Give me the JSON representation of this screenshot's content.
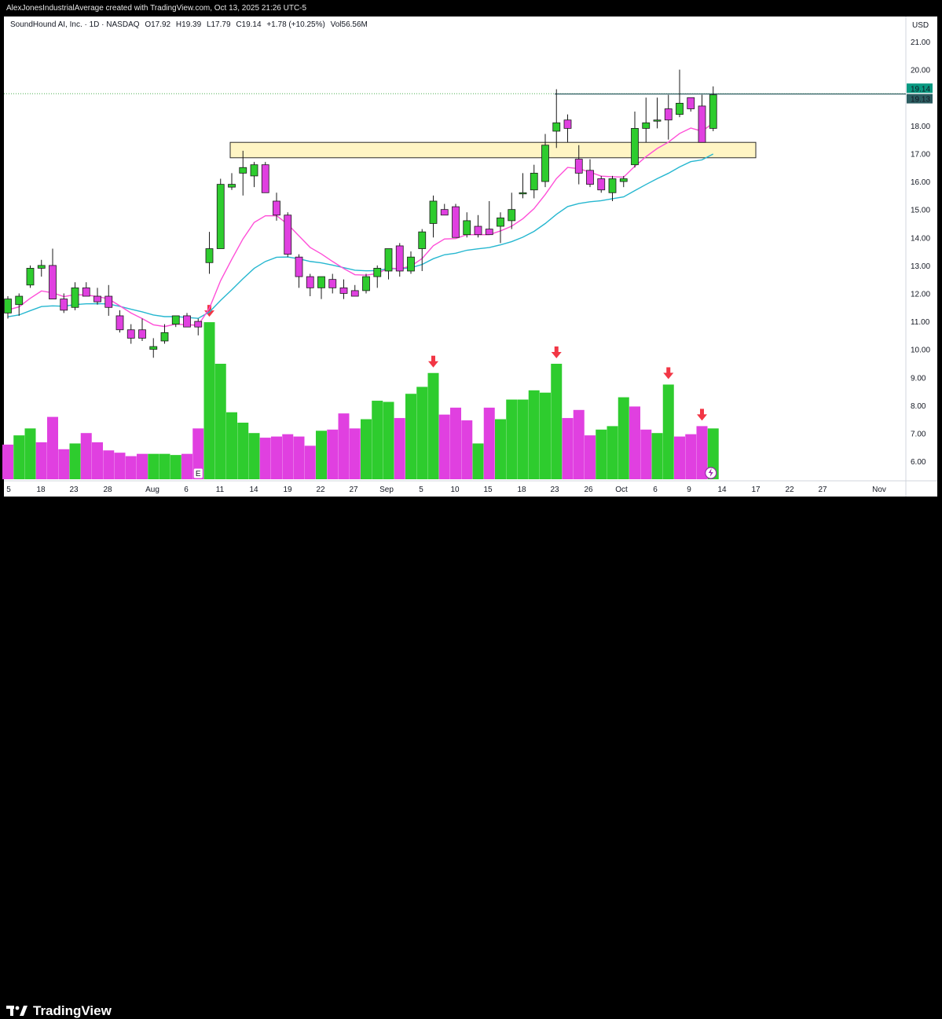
{
  "header": {
    "credit": "AlexJonesIndustrialAverage created with TradingView.com, Oct 13, 2025 21:26 UTC-5",
    "symbol": "SoundHound AI, Inc. · 1D · NASDAQ",
    "open": "O17.92",
    "high": "H19.39",
    "low": "L17.79",
    "close": "C19.14",
    "change": "+1.78 (+10.25%)",
    "volume": "Vol56.56M"
  },
  "footer": {
    "brand": "TradingView"
  },
  "colors": {
    "up": "#2ecc2e",
    "down": "#e040e0",
    "ema_fast": "#ff4fd8",
    "ema_slow": "#26b7d0",
    "zone_fill": "#fff5c4",
    "arrow": "#f23645",
    "last_price": "#26a69a"
  },
  "chart_data": {
    "type": "candlestick",
    "currency": "USD",
    "price_axis": {
      "min": 5.3,
      "max": 21.9,
      "ticks": [
        "21.00",
        "20.00",
        "19.00",
        "18.00",
        "17.00",
        "16.00",
        "15.00",
        "14.00",
        "13.00",
        "12.00",
        "11.00",
        "10.00",
        "9.00",
        "8.00",
        "7.00",
        "6.00"
      ]
    },
    "x_labels": [
      "5",
      "18",
      "23",
      "28",
      "Aug",
      "6",
      "11",
      "14",
      "19",
      "22",
      "27",
      "Sep",
      "5",
      "10",
      "15",
      "18",
      "23",
      "26",
      "Oct",
      "6",
      "9",
      "14",
      "17",
      "22",
      "27",
      "Nov"
    ],
    "last_price_labels": [
      "19.14",
      "19.13"
    ],
    "earnings_marker": "E",
    "resistance_zone": {
      "top": 17.4,
      "bottom": 16.85
    },
    "resistance_line": 19.13,
    "candles": [
      {
        "o": 11.3,
        "h": 11.9,
        "l": 11.1,
        "c": 11.8
      },
      {
        "o": 11.6,
        "h": 12.0,
        "l": 11.2,
        "c": 11.9
      },
      {
        "o": 12.3,
        "h": 13.0,
        "l": 12.2,
        "c": 12.9
      },
      {
        "o": 12.9,
        "h": 13.2,
        "l": 12.6,
        "c": 13.0
      },
      {
        "o": 13.0,
        "h": 13.6,
        "l": 11.8,
        "c": 11.8
      },
      {
        "o": 11.8,
        "h": 12.0,
        "l": 11.3,
        "c": 11.4
      },
      {
        "o": 11.5,
        "h": 12.4,
        "l": 11.4,
        "c": 12.2
      },
      {
        "o": 12.2,
        "h": 12.4,
        "l": 11.9,
        "c": 11.9
      },
      {
        "o": 11.9,
        "h": 12.2,
        "l": 11.6,
        "c": 11.7
      },
      {
        "o": 11.9,
        "h": 12.3,
        "l": 11.2,
        "c": 11.5
      },
      {
        "o": 11.2,
        "h": 11.4,
        "l": 10.6,
        "c": 10.7
      },
      {
        "o": 10.7,
        "h": 10.9,
        "l": 10.2,
        "c": 10.4
      },
      {
        "o": 10.7,
        "h": 11.1,
        "l": 10.3,
        "c": 10.4
      },
      {
        "o": 10.0,
        "h": 10.4,
        "l": 9.7,
        "c": 10.1
      },
      {
        "o": 10.3,
        "h": 10.9,
        "l": 10.2,
        "c": 10.6
      },
      {
        "o": 10.9,
        "h": 11.2,
        "l": 10.8,
        "c": 11.2
      },
      {
        "o": 11.2,
        "h": 11.3,
        "l": 10.8,
        "c": 10.8
      },
      {
        "o": 11.0,
        "h": 11.1,
        "l": 10.5,
        "c": 10.8
      },
      {
        "o": 13.1,
        "h": 14.2,
        "l": 12.7,
        "c": 13.6
      },
      {
        "o": 13.6,
        "h": 16.1,
        "l": 13.6,
        "c": 15.9
      },
      {
        "o": 15.8,
        "h": 16.3,
        "l": 15.7,
        "c": 15.9
      },
      {
        "o": 16.3,
        "h": 17.1,
        "l": 15.5,
        "c": 16.5
      },
      {
        "o": 16.2,
        "h": 16.7,
        "l": 15.8,
        "c": 16.6
      },
      {
        "o": 16.6,
        "h": 16.7,
        "l": 15.6,
        "c": 15.6
      },
      {
        "o": 15.3,
        "h": 15.6,
        "l": 14.6,
        "c": 14.8
      },
      {
        "o": 14.8,
        "h": 14.9,
        "l": 13.3,
        "c": 13.4
      },
      {
        "o": 13.3,
        "h": 13.4,
        "l": 12.2,
        "c": 12.6
      },
      {
        "o": 12.6,
        "h": 12.7,
        "l": 11.9,
        "c": 12.2
      },
      {
        "o": 12.2,
        "h": 12.6,
        "l": 11.8,
        "c": 12.6
      },
      {
        "o": 12.5,
        "h": 12.7,
        "l": 12.0,
        "c": 12.2
      },
      {
        "o": 12.2,
        "h": 12.5,
        "l": 11.8,
        "c": 12.0
      },
      {
        "o": 12.1,
        "h": 12.3,
        "l": 11.9,
        "c": 11.9
      },
      {
        "o": 12.1,
        "h": 12.7,
        "l": 12.0,
        "c": 12.6
      },
      {
        "o": 12.6,
        "h": 13.0,
        "l": 12.2,
        "c": 12.9
      },
      {
        "o": 12.8,
        "h": 13.6,
        "l": 12.5,
        "c": 13.6
      },
      {
        "o": 13.7,
        "h": 13.8,
        "l": 12.6,
        "c": 12.8
      },
      {
        "o": 12.8,
        "h": 13.5,
        "l": 12.7,
        "c": 13.3
      },
      {
        "o": 13.6,
        "h": 14.3,
        "l": 12.8,
        "c": 14.2
      },
      {
        "o": 14.5,
        "h": 15.5,
        "l": 14.0,
        "c": 15.3
      },
      {
        "o": 15.0,
        "h": 15.2,
        "l": 14.8,
        "c": 14.8
      },
      {
        "o": 15.1,
        "h": 15.2,
        "l": 14.0,
        "c": 14.0
      },
      {
        "o": 14.1,
        "h": 14.9,
        "l": 14.0,
        "c": 14.6
      },
      {
        "o": 14.4,
        "h": 14.8,
        "l": 14.0,
        "c": 14.1
      },
      {
        "o": 14.3,
        "h": 15.3,
        "l": 14.1,
        "c": 14.1
      },
      {
        "o": 14.4,
        "h": 14.9,
        "l": 13.8,
        "c": 14.7
      },
      {
        "o": 14.6,
        "h": 15.6,
        "l": 14.3,
        "c": 15.0
      },
      {
        "o": 15.6,
        "h": 16.3,
        "l": 15.4,
        "c": 15.6
      },
      {
        "o": 15.7,
        "h": 16.6,
        "l": 15.4,
        "c": 16.3
      },
      {
        "o": 16.0,
        "h": 17.7,
        "l": 15.8,
        "c": 17.3
      },
      {
        "o": 17.8,
        "h": 19.3,
        "l": 17.2,
        "c": 18.1
      },
      {
        "o": 18.2,
        "h": 18.4,
        "l": 17.4,
        "c": 17.9
      },
      {
        "o": 16.8,
        "h": 17.3,
        "l": 15.9,
        "c": 16.3
      },
      {
        "o": 16.4,
        "h": 16.8,
        "l": 15.8,
        "c": 15.9
      },
      {
        "o": 16.1,
        "h": 16.2,
        "l": 15.6,
        "c": 15.7
      },
      {
        "o": 15.6,
        "h": 16.2,
        "l": 15.3,
        "c": 16.1
      },
      {
        "o": 16.0,
        "h": 16.2,
        "l": 15.8,
        "c": 16.1
      },
      {
        "o": 16.6,
        "h": 18.5,
        "l": 16.5,
        "c": 17.9
      },
      {
        "o": 17.9,
        "h": 19.0,
        "l": 17.4,
        "c": 18.1
      },
      {
        "o": 18.2,
        "h": 19.0,
        "l": 17.9,
        "c": 18.2
      },
      {
        "o": 18.6,
        "h": 19.1,
        "l": 17.5,
        "c": 18.2
      },
      {
        "o": 18.4,
        "h": 20.0,
        "l": 18.3,
        "c": 18.8
      },
      {
        "o": 19.0,
        "h": 19.0,
        "l": 18.5,
        "c": 18.6
      },
      {
        "o": 18.7,
        "h": 19.1,
        "l": 17.4,
        "c": 17.4
      },
      {
        "o": 17.9,
        "h": 19.4,
        "l": 17.8,
        "c": 19.1
      }
    ],
    "volume": [
      {
        "v": 0.3,
        "up": false
      },
      {
        "v": 0.38,
        "up": true
      },
      {
        "v": 0.44,
        "up": true
      },
      {
        "v": 0.32,
        "up": false
      },
      {
        "v": 0.54,
        "up": false
      },
      {
        "v": 0.26,
        "up": false
      },
      {
        "v": 0.31,
        "up": true
      },
      {
        "v": 0.4,
        "up": false
      },
      {
        "v": 0.32,
        "up": false
      },
      {
        "v": 0.25,
        "up": false
      },
      {
        "v": 0.23,
        "up": false
      },
      {
        "v": 0.2,
        "up": false
      },
      {
        "v": 0.22,
        "up": false
      },
      {
        "v": 0.22,
        "up": true
      },
      {
        "v": 0.22,
        "up": true
      },
      {
        "v": 0.21,
        "up": true
      },
      {
        "v": 0.22,
        "up": false
      },
      {
        "v": 0.44,
        "up": false
      },
      {
        "v": 1.36,
        "up": true
      },
      {
        "v": 1.0,
        "up": true
      },
      {
        "v": 0.58,
        "up": true
      },
      {
        "v": 0.49,
        "up": true
      },
      {
        "v": 0.4,
        "up": true
      },
      {
        "v": 0.36,
        "up": false
      },
      {
        "v": 0.37,
        "up": false
      },
      {
        "v": 0.39,
        "up": false
      },
      {
        "v": 0.37,
        "up": false
      },
      {
        "v": 0.29,
        "up": false
      },
      {
        "v": 0.42,
        "up": true
      },
      {
        "v": 0.43,
        "up": false
      },
      {
        "v": 0.57,
        "up": false
      },
      {
        "v": 0.44,
        "up": false
      },
      {
        "v": 0.52,
        "up": true
      },
      {
        "v": 0.68,
        "up": true
      },
      {
        "v": 0.67,
        "up": true
      },
      {
        "v": 0.53,
        "up": false
      },
      {
        "v": 0.74,
        "up": true
      },
      {
        "v": 0.8,
        "up": true
      },
      {
        "v": 0.92,
        "up": true
      },
      {
        "v": 0.56,
        "up": false
      },
      {
        "v": 0.62,
        "up": false
      },
      {
        "v": 0.51,
        "up": false
      },
      {
        "v": 0.31,
        "up": true
      },
      {
        "v": 0.62,
        "up": false
      },
      {
        "v": 0.52,
        "up": true
      },
      {
        "v": 0.69,
        "up": true
      },
      {
        "v": 0.69,
        "up": true
      },
      {
        "v": 0.77,
        "up": true
      },
      {
        "v": 0.75,
        "up": true
      },
      {
        "v": 1.0,
        "up": true
      },
      {
        "v": 0.53,
        "up": false
      },
      {
        "v": 0.6,
        "up": false
      },
      {
        "v": 0.38,
        "up": false
      },
      {
        "v": 0.43,
        "up": true
      },
      {
        "v": 0.46,
        "up": true
      },
      {
        "v": 0.71,
        "up": true
      },
      {
        "v": 0.63,
        "up": false
      },
      {
        "v": 0.43,
        "up": false
      },
      {
        "v": 0.4,
        "up": true
      },
      {
        "v": 0.82,
        "up": true
      },
      {
        "v": 0.37,
        "up": false
      },
      {
        "v": 0.39,
        "up": false
      },
      {
        "v": 0.46,
        "up": false
      },
      {
        "v": 0.44,
        "up": true
      }
    ],
    "volume_arrows": [
      18,
      38,
      49,
      59,
      62
    ]
  }
}
